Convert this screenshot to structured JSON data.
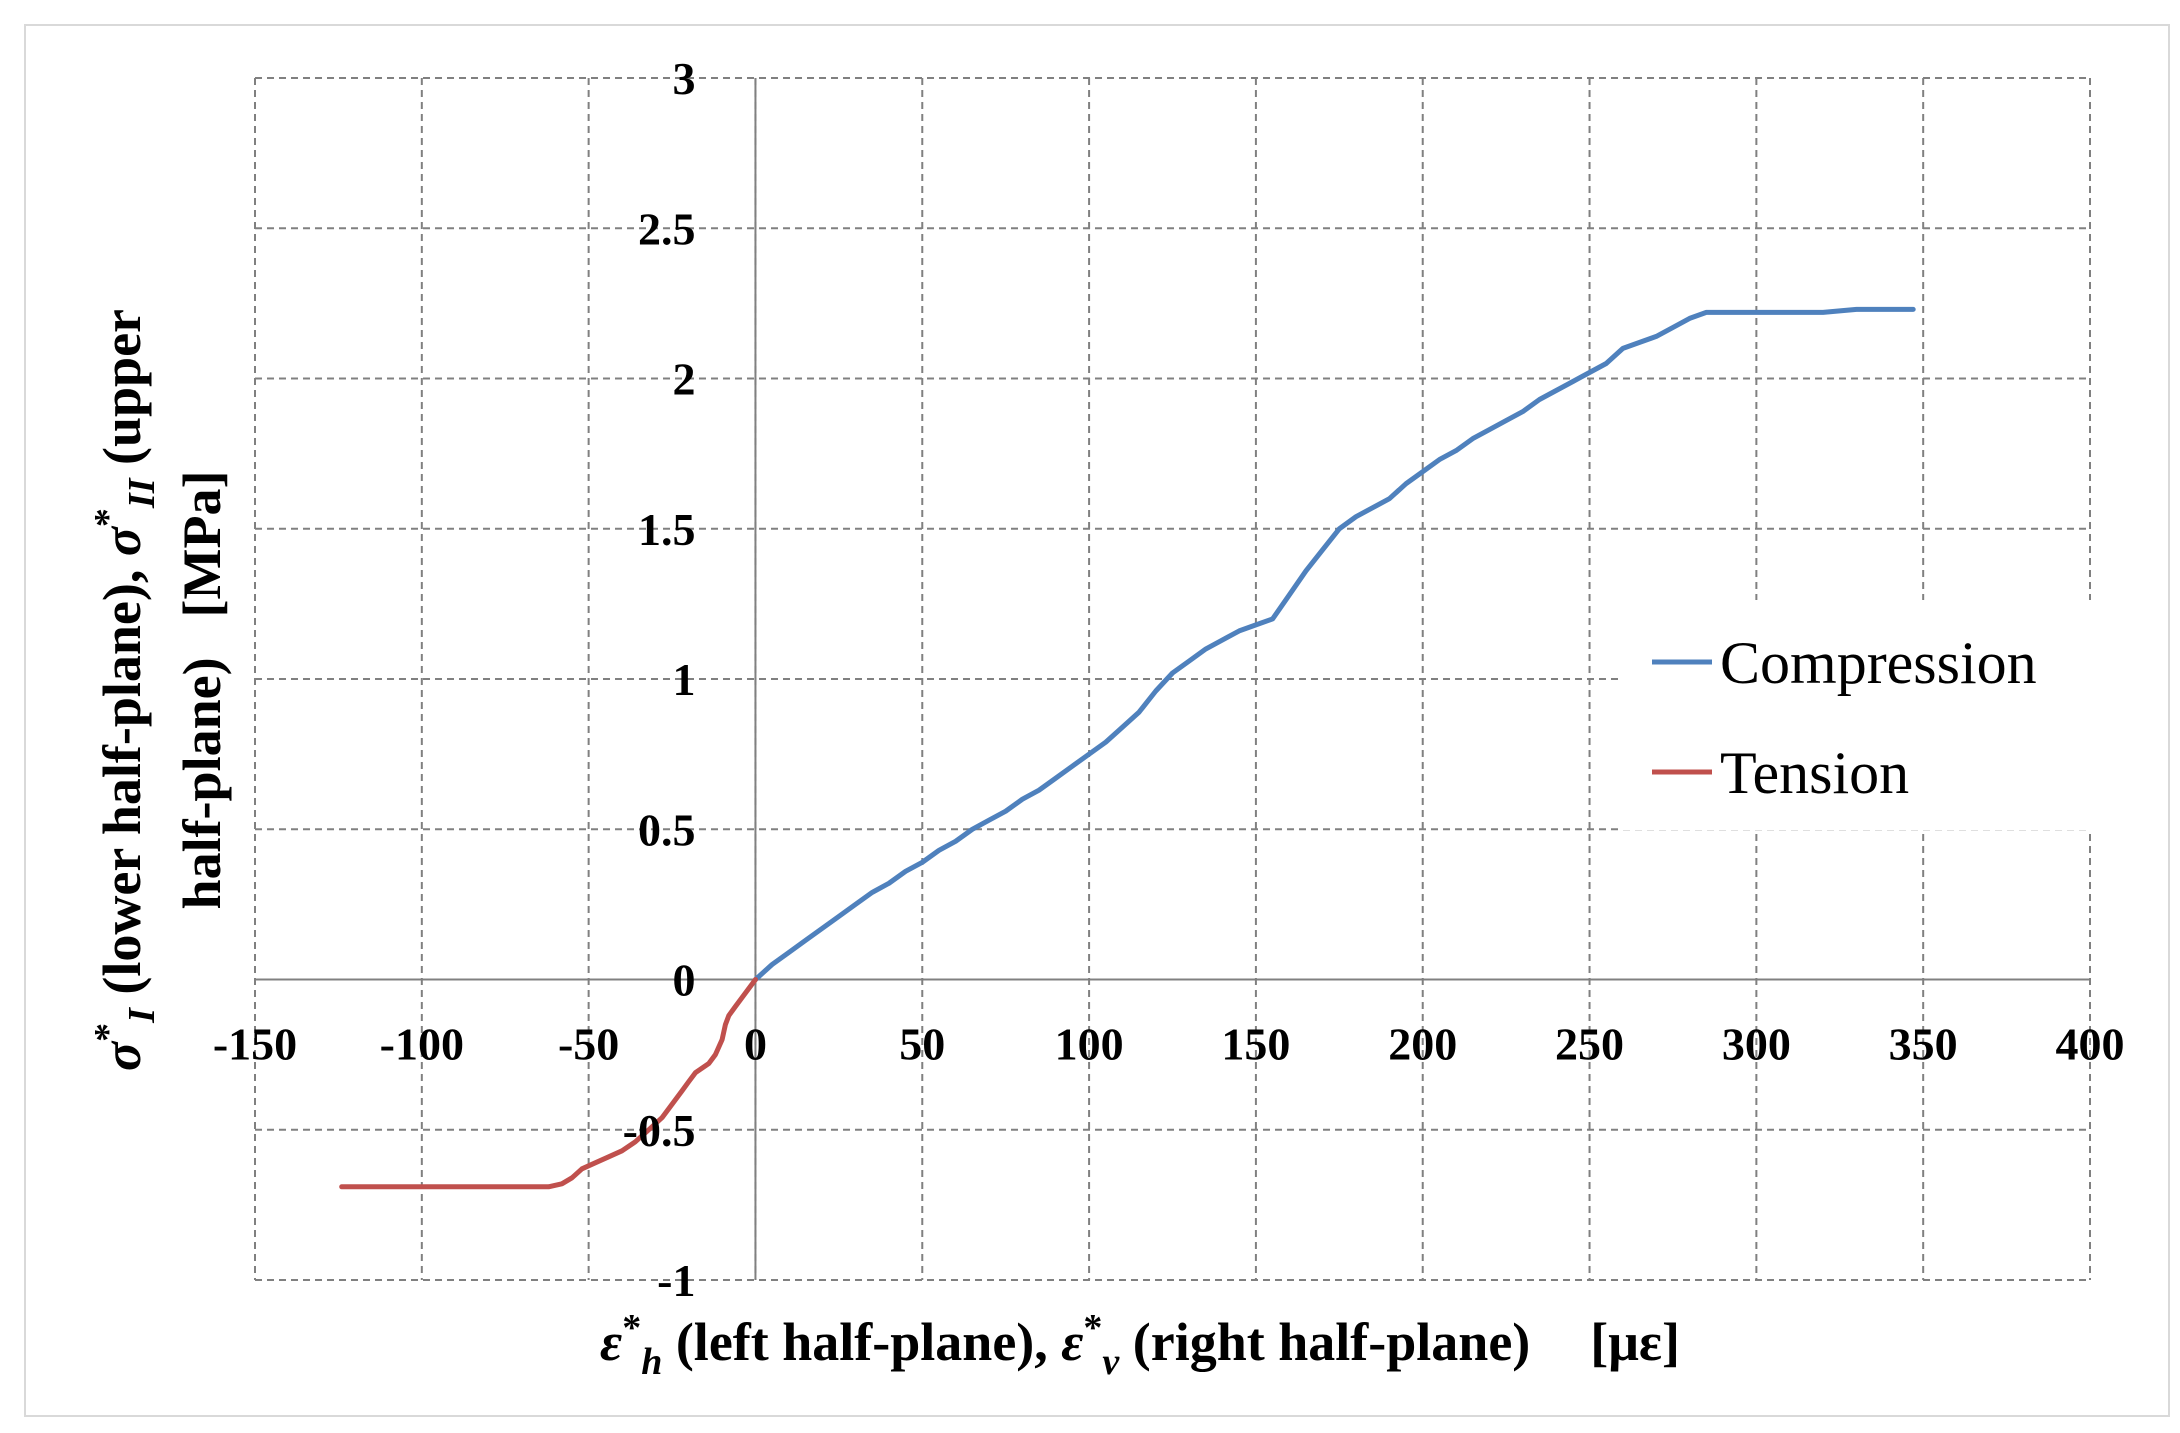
{
  "chart_data": {
    "type": "line",
    "title": "",
    "xlabel": {
      "part1_symbol": "ε",
      "part1_sup": "*",
      "part1_sub": "h",
      "part1_text": " (left half-plane), ",
      "part2_symbol": "ε",
      "part2_sup": "*",
      "part2_sub": "v",
      "part2_text": " (right half-plane)",
      "unit": "[με]"
    },
    "ylabel": {
      "line1_symbol": "σ",
      "line1_sup": "*",
      "line1_sub": "I",
      "line1_text": " (lower half-plane), ",
      "line1_symbol2": "σ",
      "line1_sup2": "*",
      "line1_sub2": "II",
      "line1_text2": " (upper",
      "line2_text": "half-plane)",
      "unit": "[MPa]"
    },
    "xlim": [
      -150,
      400
    ],
    "ylim": [
      -1,
      3
    ],
    "x_ticks": [
      -150,
      -100,
      -50,
      0,
      50,
      100,
      150,
      200,
      250,
      300,
      350,
      400
    ],
    "x_tick_labels": [
      "-150",
      "-100",
      "-50",
      "0",
      "50",
      "100",
      "150",
      "200",
      "250",
      "300",
      "350",
      "400"
    ],
    "y_ticks": [
      -1,
      -0.5,
      0,
      0.5,
      1,
      1.5,
      2,
      2.5,
      3
    ],
    "y_tick_labels": [
      "-1",
      "-0.5",
      "0",
      "0.5",
      "1",
      "1.5",
      "2",
      "2.5",
      "3"
    ],
    "grid": true,
    "legend_position": "right",
    "series": [
      {
        "name": "Compression",
        "color": "#4f81bd",
        "x": [
          0,
          5,
          10,
          15,
          20,
          25,
          30,
          35,
          40,
          45,
          50,
          55,
          60,
          65,
          70,
          75,
          80,
          85,
          90,
          95,
          100,
          105,
          110,
          115,
          120,
          125,
          130,
          135,
          140,
          145,
          150,
          155,
          160,
          165,
          170,
          175,
          180,
          185,
          190,
          195,
          200,
          205,
          210,
          215,
          220,
          225,
          230,
          235,
          240,
          245,
          250,
          255,
          260,
          265,
          270,
          275,
          280,
          285,
          290,
          295,
          300,
          310,
          320,
          330,
          340,
          347
        ],
        "y": [
          0,
          0.05,
          0.09,
          0.13,
          0.17,
          0.21,
          0.25,
          0.29,
          0.32,
          0.36,
          0.39,
          0.43,
          0.46,
          0.5,
          0.53,
          0.56,
          0.6,
          0.63,
          0.67,
          0.71,
          0.75,
          0.79,
          0.84,
          0.89,
          0.96,
          1.02,
          1.06,
          1.1,
          1.13,
          1.16,
          1.18,
          1.2,
          1.28,
          1.36,
          1.43,
          1.5,
          1.54,
          1.57,
          1.6,
          1.65,
          1.69,
          1.73,
          1.76,
          1.8,
          1.83,
          1.86,
          1.89,
          1.93,
          1.96,
          1.99,
          2.02,
          2.05,
          2.1,
          2.12,
          2.14,
          2.17,
          2.2,
          2.22,
          2.22,
          2.22,
          2.22,
          2.22,
          2.22,
          2.23,
          2.23,
          2.23
        ]
      },
      {
        "name": "Tension",
        "color": "#c0504d",
        "x": [
          -124,
          -110,
          -100,
          -90,
          -80,
          -70,
          -62,
          -58,
          -55,
          -52,
          -48,
          -44,
          -40,
          -36,
          -32,
          -28,
          -26,
          -24,
          -22,
          -20,
          -18,
          -14,
          -12,
          -10,
          -9,
          -8,
          -6,
          -4,
          -2,
          0
        ],
        "y": [
          -0.69,
          -0.69,
          -0.69,
          -0.69,
          -0.69,
          -0.69,
          -0.69,
          -0.68,
          -0.66,
          -0.63,
          -0.61,
          -0.59,
          -0.57,
          -0.54,
          -0.5,
          -0.46,
          -0.43,
          -0.4,
          -0.37,
          -0.34,
          -0.31,
          -0.28,
          -0.25,
          -0.2,
          -0.15,
          -0.12,
          -0.09,
          -0.06,
          -0.03,
          0
        ]
      }
    ]
  }
}
